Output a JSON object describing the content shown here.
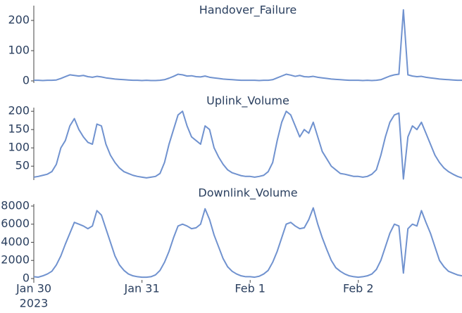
{
  "chart_data": [
    {
      "type": "line",
      "title": "Handover_Failure",
      "color": "#7092cf",
      "x": [
        "2023-01-30T00:00",
        "2023-01-30T01:00",
        "2023-01-30T02:00",
        "2023-01-30T03:00",
        "2023-01-30T04:00",
        "2023-01-30T05:00",
        "2023-01-30T06:00",
        "2023-01-30T07:00",
        "2023-01-30T08:00",
        "2023-01-30T09:00",
        "2023-01-30T10:00",
        "2023-01-30T11:00",
        "2023-01-30T12:00",
        "2023-01-30T13:00",
        "2023-01-30T14:00",
        "2023-01-30T15:00",
        "2023-01-30T16:00",
        "2023-01-30T17:00",
        "2023-01-30T18:00",
        "2023-01-30T19:00",
        "2023-01-30T20:00",
        "2023-01-30T21:00",
        "2023-01-30T22:00",
        "2023-01-30T23:00",
        "2023-01-31T00:00",
        "2023-01-31T01:00",
        "2023-01-31T02:00",
        "2023-01-31T03:00",
        "2023-01-31T04:00",
        "2023-01-31T05:00",
        "2023-01-31T06:00",
        "2023-01-31T07:00",
        "2023-01-31T08:00",
        "2023-01-31T09:00",
        "2023-01-31T10:00",
        "2023-01-31T11:00",
        "2023-01-31T12:00",
        "2023-01-31T13:00",
        "2023-01-31T14:00",
        "2023-01-31T15:00",
        "2023-01-31T16:00",
        "2023-01-31T17:00",
        "2023-01-31T18:00",
        "2023-01-31T19:00",
        "2023-01-31T20:00",
        "2023-01-31T21:00",
        "2023-01-31T22:00",
        "2023-01-31T23:00",
        "2023-02-01T00:00",
        "2023-02-01T01:00",
        "2023-02-01T02:00",
        "2023-02-01T03:00",
        "2023-02-01T04:00",
        "2023-02-01T05:00",
        "2023-02-01T06:00",
        "2023-02-01T07:00",
        "2023-02-01T08:00",
        "2023-02-01T09:00",
        "2023-02-01T10:00",
        "2023-02-01T11:00",
        "2023-02-01T12:00",
        "2023-02-01T13:00",
        "2023-02-01T14:00",
        "2023-02-01T15:00",
        "2023-02-01T16:00",
        "2023-02-01T17:00",
        "2023-02-01T18:00",
        "2023-02-01T19:00",
        "2023-02-01T20:00",
        "2023-02-01T21:00",
        "2023-02-01T22:00",
        "2023-02-01T23:00",
        "2023-02-02T00:00",
        "2023-02-02T01:00",
        "2023-02-02T02:00",
        "2023-02-02T03:00",
        "2023-02-02T04:00",
        "2023-02-02T05:00",
        "2023-02-02T06:00",
        "2023-02-02T07:00",
        "2023-02-02T08:00",
        "2023-02-02T09:00",
        "2023-02-02T10:00",
        "2023-02-02T11:00",
        "2023-02-02T12:00",
        "2023-02-02T13:00",
        "2023-02-02T14:00",
        "2023-02-02T15:00",
        "2023-02-02T16:00",
        "2023-02-02T17:00",
        "2023-02-02T18:00",
        "2023-02-02T19:00",
        "2023-02-02T20:00",
        "2023-02-02T21:00",
        "2023-02-02T22:00",
        "2023-02-02T23:00"
      ],
      "values": [
        2,
        2,
        1,
        2,
        2,
        3,
        8,
        14,
        20,
        18,
        16,
        18,
        14,
        12,
        15,
        13,
        10,
        8,
        6,
        5,
        4,
        3,
        2,
        2,
        1,
        2,
        1,
        1,
        2,
        4,
        9,
        15,
        22,
        20,
        16,
        17,
        14,
        13,
        16,
        12,
        10,
        8,
        6,
        5,
        4,
        3,
        2,
        2,
        2,
        2,
        1,
        2,
        2,
        4,
        10,
        16,
        22,
        19,
        15,
        18,
        14,
        13,
        15,
        12,
        10,
        8,
        6,
        5,
        4,
        3,
        2,
        2,
        2,
        1,
        2,
        1,
        2,
        4,
        10,
        16,
        20,
        22,
        235,
        20,
        16,
        14,
        15,
        12,
        10,
        8,
        6,
        5,
        4,
        3,
        2,
        2
      ],
      "xlim": [
        "2023-01-30T00:00",
        "2023-02-02T23:00"
      ],
      "ylim": [
        -7,
        249
      ],
      "yticks": [
        0,
        100,
        200
      ]
    },
    {
      "type": "line",
      "title": "Uplink_Volume",
      "color": "#7092cf",
      "x": [
        "2023-01-30T00:00",
        "2023-01-30T01:00",
        "2023-01-30T02:00",
        "2023-01-30T03:00",
        "2023-01-30T04:00",
        "2023-01-30T05:00",
        "2023-01-30T06:00",
        "2023-01-30T07:00",
        "2023-01-30T08:00",
        "2023-01-30T09:00",
        "2023-01-30T10:00",
        "2023-01-30T11:00",
        "2023-01-30T12:00",
        "2023-01-30T13:00",
        "2023-01-30T14:00",
        "2023-01-30T15:00",
        "2023-01-30T16:00",
        "2023-01-30T17:00",
        "2023-01-30T18:00",
        "2023-01-30T19:00",
        "2023-01-30T20:00",
        "2023-01-30T21:00",
        "2023-01-30T22:00",
        "2023-01-30T23:00",
        "2023-01-31T00:00",
        "2023-01-31T01:00",
        "2023-01-31T02:00",
        "2023-01-31T03:00",
        "2023-01-31T04:00",
        "2023-01-31T05:00",
        "2023-01-31T06:00",
        "2023-01-31T07:00",
        "2023-01-31T08:00",
        "2023-01-31T09:00",
        "2023-01-31T10:00",
        "2023-01-31T11:00",
        "2023-01-31T12:00",
        "2023-01-31T13:00",
        "2023-01-31T14:00",
        "2023-01-31T15:00",
        "2023-01-31T16:00",
        "2023-01-31T17:00",
        "2023-01-31T18:00",
        "2023-01-31T19:00",
        "2023-01-31T20:00",
        "2023-01-31T21:00",
        "2023-01-31T22:00",
        "2023-01-31T23:00",
        "2023-02-01T00:00",
        "2023-02-01T01:00",
        "2023-02-01T02:00",
        "2023-02-01T03:00",
        "2023-02-01T04:00",
        "2023-02-01T05:00",
        "2023-02-01T06:00",
        "2023-02-01T07:00",
        "2023-02-01T08:00",
        "2023-02-01T09:00",
        "2023-02-01T10:00",
        "2023-02-01T11:00",
        "2023-02-01T12:00",
        "2023-02-01T13:00",
        "2023-02-01T14:00",
        "2023-02-01T15:00",
        "2023-02-01T16:00",
        "2023-02-01T17:00",
        "2023-02-01T18:00",
        "2023-02-01T19:00",
        "2023-02-01T20:00",
        "2023-02-01T21:00",
        "2023-02-01T22:00",
        "2023-02-01T23:00",
        "2023-02-02T00:00",
        "2023-02-02T01:00",
        "2023-02-02T02:00",
        "2023-02-02T03:00",
        "2023-02-02T04:00",
        "2023-02-02T05:00",
        "2023-02-02T06:00",
        "2023-02-02T07:00",
        "2023-02-02T08:00",
        "2023-02-02T09:00",
        "2023-02-02T10:00",
        "2023-02-02T11:00",
        "2023-02-02T12:00",
        "2023-02-02T13:00",
        "2023-02-02T14:00",
        "2023-02-02T15:00",
        "2023-02-02T16:00",
        "2023-02-02T17:00",
        "2023-02-02T18:00",
        "2023-02-02T19:00",
        "2023-02-02T20:00",
        "2023-02-02T21:00",
        "2023-02-02T22:00",
        "2023-02-02T23:00"
      ],
      "values": [
        20,
        22,
        25,
        28,
        35,
        55,
        100,
        120,
        160,
        180,
        150,
        130,
        115,
        110,
        165,
        160,
        110,
        80,
        60,
        45,
        35,
        30,
        25,
        22,
        20,
        18,
        20,
        22,
        30,
        60,
        110,
        150,
        190,
        200,
        160,
        130,
        120,
        110,
        160,
        150,
        100,
        75,
        55,
        40,
        32,
        28,
        24,
        22,
        22,
        20,
        22,
        25,
        35,
        60,
        120,
        170,
        200,
        190,
        160,
        130,
        150,
        140,
        170,
        130,
        90,
        70,
        50,
        40,
        30,
        28,
        25,
        22,
        22,
        20,
        22,
        28,
        40,
        80,
        130,
        170,
        190,
        195,
        15,
        130,
        160,
        150,
        170,
        140,
        110,
        80,
        60,
        45,
        35,
        28,
        22,
        18
      ],
      "xlim": [
        "2023-01-30T00:00",
        "2023-02-02T23:00"
      ],
      "ylim": [
        12,
        210
      ],
      "yticks": [
        50,
        100,
        150,
        200
      ]
    },
    {
      "type": "line",
      "title": "Downlink_Volume",
      "color": "#7092cf",
      "x": [
        "2023-01-30T00:00",
        "2023-01-30T01:00",
        "2023-01-30T02:00",
        "2023-01-30T03:00",
        "2023-01-30T04:00",
        "2023-01-30T05:00",
        "2023-01-30T06:00",
        "2023-01-30T07:00",
        "2023-01-30T08:00",
        "2023-01-30T09:00",
        "2023-01-30T10:00",
        "2023-01-30T11:00",
        "2023-01-30T12:00",
        "2023-01-30T13:00",
        "2023-01-30T14:00",
        "2023-01-30T15:00",
        "2023-01-30T16:00",
        "2023-01-30T17:00",
        "2023-01-30T18:00",
        "2023-01-30T19:00",
        "2023-01-30T20:00",
        "2023-01-30T21:00",
        "2023-01-30T22:00",
        "2023-01-30T23:00",
        "2023-01-31T00:00",
        "2023-01-31T01:00",
        "2023-01-31T02:00",
        "2023-01-31T03:00",
        "2023-01-31T04:00",
        "2023-01-31T05:00",
        "2023-01-31T06:00",
        "2023-01-31T07:00",
        "2023-01-31T08:00",
        "2023-01-31T09:00",
        "2023-01-31T10:00",
        "2023-01-31T11:00",
        "2023-01-31T12:00",
        "2023-01-31T13:00",
        "2023-01-31T14:00",
        "2023-01-31T15:00",
        "2023-01-31T16:00",
        "2023-01-31T17:00",
        "2023-01-31T18:00",
        "2023-01-31T19:00",
        "2023-01-31T20:00",
        "2023-01-31T21:00",
        "2023-01-31T22:00",
        "2023-01-31T23:00",
        "2023-02-01T00:00",
        "2023-02-01T01:00",
        "2023-02-01T02:00",
        "2023-02-01T03:00",
        "2023-02-01T04:00",
        "2023-02-01T05:00",
        "2023-02-01T06:00",
        "2023-02-01T07:00",
        "2023-02-01T08:00",
        "2023-02-01T09:00",
        "2023-02-01T10:00",
        "2023-02-01T11:00",
        "2023-02-01T12:00",
        "2023-02-01T13:00",
        "2023-02-01T14:00",
        "2023-02-01T15:00",
        "2023-02-01T16:00",
        "2023-02-01T17:00",
        "2023-02-01T18:00",
        "2023-02-01T19:00",
        "2023-02-01T20:00",
        "2023-02-01T21:00",
        "2023-02-01T22:00",
        "2023-02-01T23:00",
        "2023-02-02T00:00",
        "2023-02-02T01:00",
        "2023-02-02T02:00",
        "2023-02-02T03:00",
        "2023-02-02T04:00",
        "2023-02-02T05:00",
        "2023-02-02T06:00",
        "2023-02-02T07:00",
        "2023-02-02T08:00",
        "2023-02-02T09:00",
        "2023-02-02T10:00",
        "2023-02-02T11:00",
        "2023-02-02T12:00",
        "2023-02-02T13:00",
        "2023-02-02T14:00",
        "2023-02-02T15:00",
        "2023-02-02T16:00",
        "2023-02-02T17:00",
        "2023-02-02T18:00",
        "2023-02-02T19:00",
        "2023-02-02T20:00",
        "2023-02-02T21:00",
        "2023-02-02T22:00",
        "2023-02-02T23:00"
      ],
      "values": [
        200,
        150,
        300,
        500,
        800,
        1500,
        2500,
        3800,
        5000,
        6200,
        6000,
        5800,
        5500,
        5800,
        7500,
        7000,
        5500,
        4000,
        2500,
        1500,
        900,
        500,
        300,
        200,
        150,
        150,
        200,
        400,
        900,
        1800,
        3000,
        4500,
        5800,
        6000,
        5800,
        5500,
        5600,
        6000,
        7700,
        6500,
        4800,
        3500,
        2200,
        1300,
        800,
        500,
        300,
        200,
        200,
        150,
        250,
        500,
        900,
        1800,
        3000,
        4500,
        6000,
        6200,
        5800,
        5500,
        5600,
        6500,
        7800,
        6000,
        4500,
        3200,
        2000,
        1200,
        800,
        500,
        300,
        200,
        150,
        200,
        300,
        500,
        1000,
        2000,
        3500,
        5000,
        6000,
        5800,
        600,
        5500,
        6000,
        5800,
        7500,
        6200,
        5000,
        3500,
        2000,
        1300,
        800,
        600,
        400,
        300
      ],
      "xlim": [
        "2023-01-30T00:00",
        "2023-02-02T23:00"
      ],
      "ylim": [
        -155,
        8230
      ],
      "yticks": [
        0,
        2000,
        4000,
        6000,
        8000
      ],
      "xticks": [
        {
          "value": "2023-01-30T00:00",
          "label": [
            "Jan 30",
            "2023"
          ]
        },
        {
          "value": "2023-01-31T00:00",
          "label": [
            "Jan 31"
          ]
        },
        {
          "value": "2023-02-01T00:00",
          "label": [
            "Feb 1"
          ]
        },
        {
          "value": "2023-02-02T00:00",
          "label": [
            "Feb 2"
          ]
        }
      ]
    }
  ]
}
